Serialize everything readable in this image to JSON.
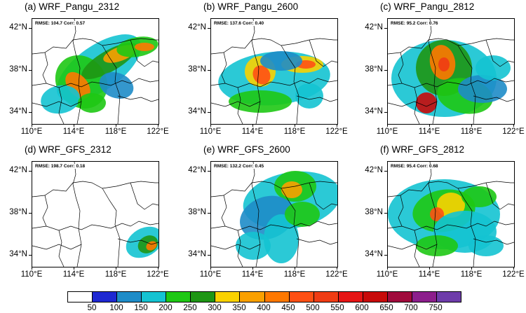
{
  "panels": [
    {
      "title": "(a) WRF_Pangu_2312",
      "stats": "RMSE: 104.7 Corr: 0.57"
    },
    {
      "title": "(b) WRF_Pangu_2600",
      "stats": "RMSE: 137.6 Corr: 0.40"
    },
    {
      "title": "(c) WRF_Pangu_2812",
      "stats": "RMSE: 95.2 Corr: 0.76"
    },
    {
      "title": "(d) WRF_GFS_2312",
      "stats": "RMSE: 198.7 Corr: 0.18"
    },
    {
      "title": "(e) WRF_GFS_2600",
      "stats": "RMSE: 132.2 Corr: 0.45"
    },
    {
      "title": "(f) WRF_GFS_2812",
      "stats": "RMSE: 95.4 Corr: 0.68"
    }
  ],
  "lat_labels": [
    "42°N",
    "38°N",
    "34°N"
  ],
  "lon_labels": [
    "110°E",
    "114°E",
    "118°E",
    "122°E"
  ],
  "colorbar": {
    "labels": [
      "50",
      "100",
      "150",
      "200",
      "250",
      "300",
      "350",
      "400",
      "450",
      "500",
      "550",
      "600",
      "650",
      "700",
      "750"
    ],
    "colors": [
      "#ffffff",
      "#1e28d2",
      "#1e8cc8",
      "#14c3d2",
      "#1ec814",
      "#1e9614",
      "#fad200",
      "#faa000",
      "#ff7800",
      "#ff5014",
      "#f03c14",
      "#e61414",
      "#c80a0a",
      "#a00a3c",
      "#8c1e8c",
      "#6e3caa"
    ]
  }
}
